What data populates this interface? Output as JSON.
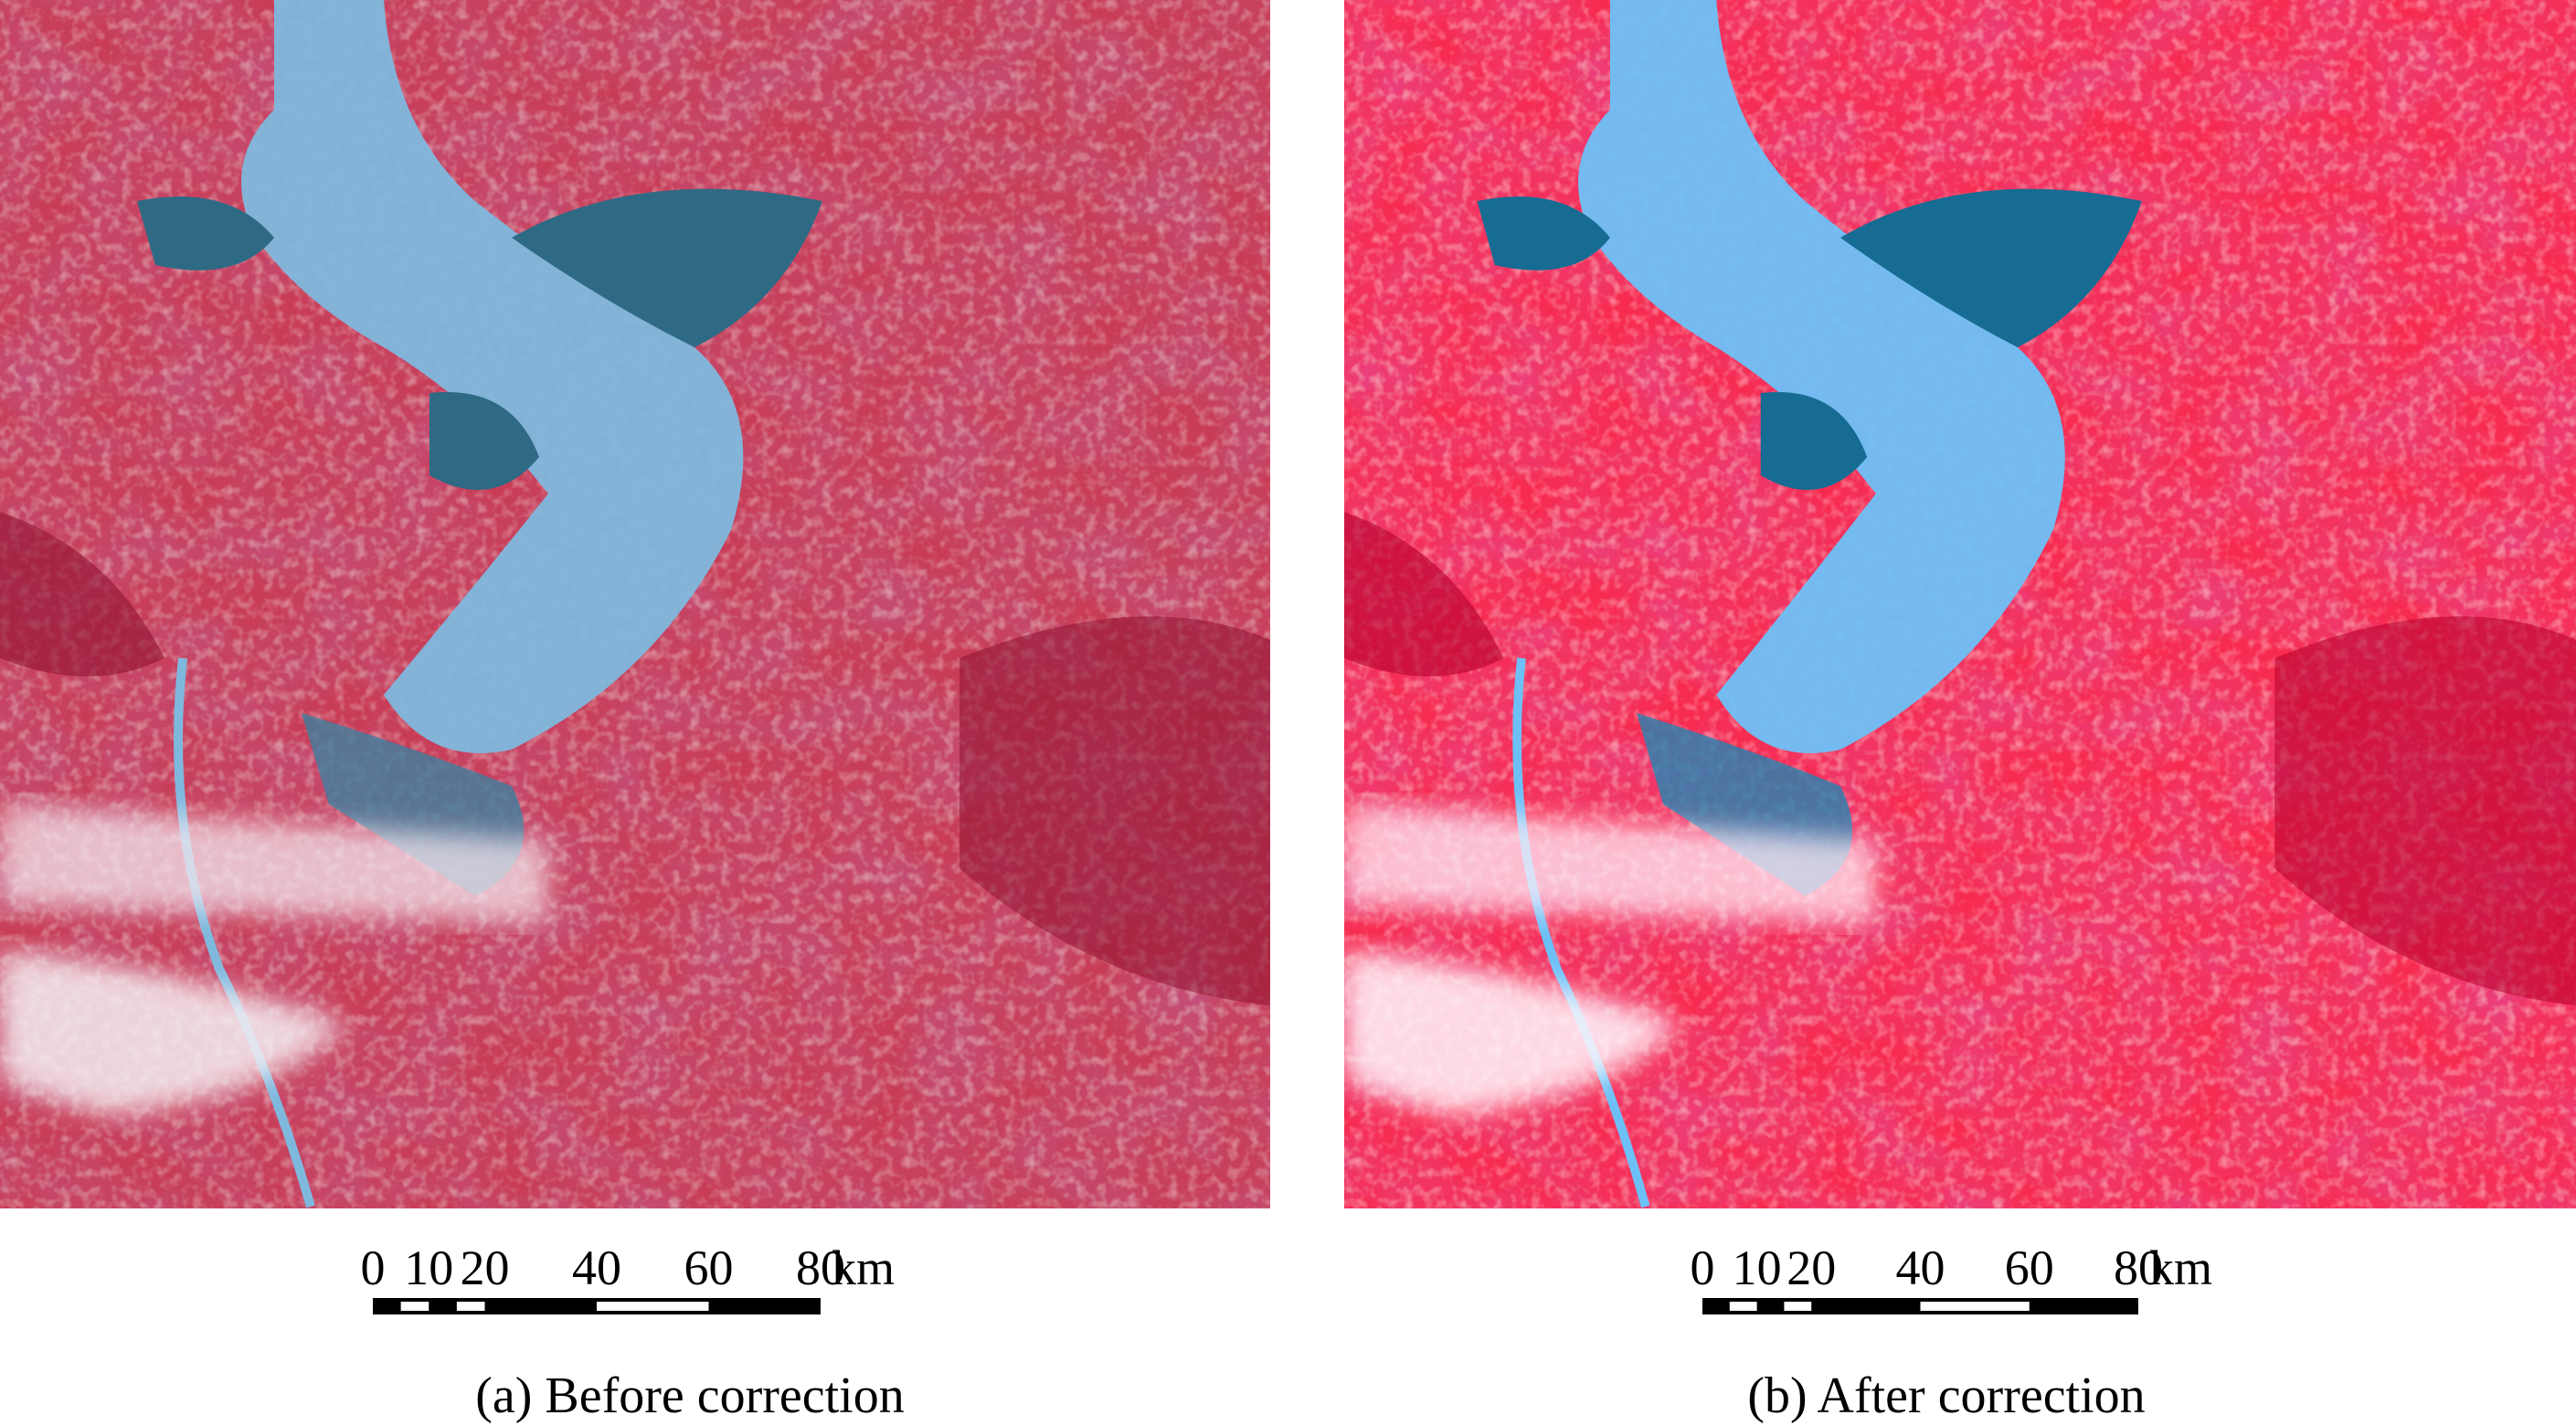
{
  "panels": [
    {
      "caption": "(a) Before correction",
      "scale_bar": {
        "ticks": [
          0,
          10,
          20,
          40,
          60,
          80
        ],
        "unit": "km"
      }
    },
    {
      "caption": "(b) After correction",
      "scale_bar": {
        "ticks": [
          0,
          10,
          20,
          40,
          60,
          80
        ],
        "unit": "km"
      }
    }
  ]
}
